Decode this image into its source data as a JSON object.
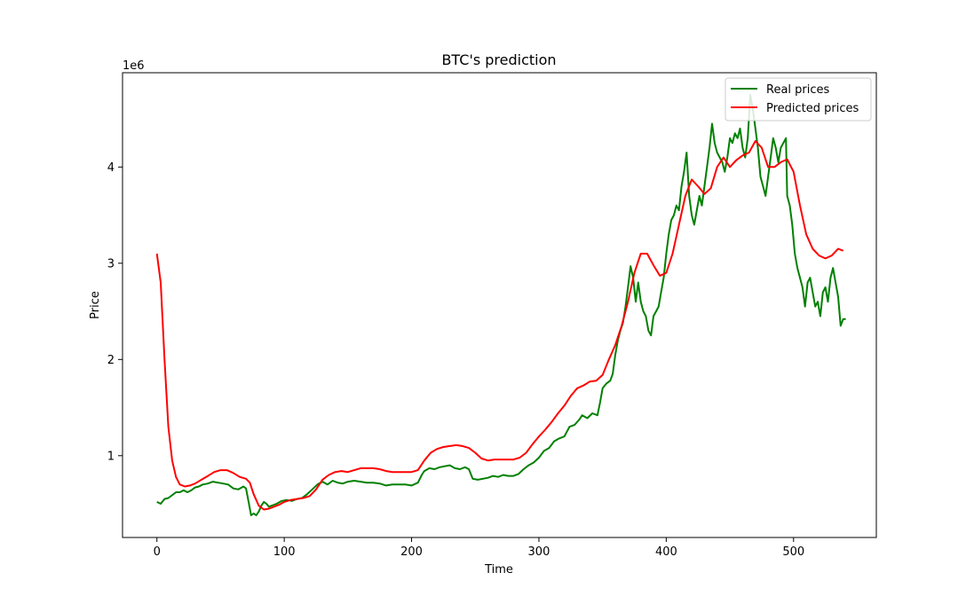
{
  "chart_data": {
    "type": "line",
    "title": "BTC's prediction",
    "xlabel": "Time",
    "ylabel": "Price",
    "offset_text": "1e6",
    "xlim": [
      -27,
      565
    ],
    "ylim": [
      0.15,
      4.98
    ],
    "xticks": [
      0,
      100,
      200,
      300,
      400,
      500
    ],
    "xtick_labels": [
      "0",
      "100",
      "200",
      "300",
      "400",
      "500"
    ],
    "yticks": [
      1,
      2,
      3,
      4
    ],
    "ytick_labels": [
      "1",
      "2",
      "3",
      "4"
    ],
    "grid": false,
    "legend_position": "top-right",
    "series": [
      {
        "name": "Real prices",
        "color": "#008000",
        "points": [
          [
            0,
            0.52
          ],
          [
            3,
            0.5
          ],
          [
            6,
            0.55
          ],
          [
            9,
            0.56
          ],
          [
            12,
            0.59
          ],
          [
            15,
            0.62
          ],
          [
            18,
            0.62
          ],
          [
            21,
            0.64
          ],
          [
            24,
            0.62
          ],
          [
            27,
            0.64
          ],
          [
            30,
            0.67
          ],
          [
            33,
            0.68
          ],
          [
            36,
            0.7
          ],
          [
            40,
            0.71
          ],
          [
            44,
            0.73
          ],
          [
            48,
            0.72
          ],
          [
            52,
            0.71
          ],
          [
            56,
            0.7
          ],
          [
            60,
            0.66
          ],
          [
            64,
            0.65
          ],
          [
            68,
            0.68
          ],
          [
            70,
            0.66
          ],
          [
            72,
            0.52
          ],
          [
            74,
            0.38
          ],
          [
            76,
            0.4
          ],
          [
            78,
            0.38
          ],
          [
            80,
            0.42
          ],
          [
            82,
            0.48
          ],
          [
            84,
            0.52
          ],
          [
            86,
            0.5
          ],
          [
            88,
            0.47
          ],
          [
            90,
            0.48
          ],
          [
            94,
            0.5
          ],
          [
            98,
            0.53
          ],
          [
            102,
            0.54
          ],
          [
            106,
            0.53
          ],
          [
            110,
            0.55
          ],
          [
            114,
            0.56
          ],
          [
            118,
            0.6
          ],
          [
            122,
            0.65
          ],
          [
            126,
            0.7
          ],
          [
            130,
            0.73
          ],
          [
            134,
            0.7
          ],
          [
            138,
            0.74
          ],
          [
            142,
            0.72
          ],
          [
            146,
            0.71
          ],
          [
            150,
            0.73
          ],
          [
            155,
            0.74
          ],
          [
            160,
            0.73
          ],
          [
            165,
            0.72
          ],
          [
            170,
            0.72
          ],
          [
            175,
            0.71
          ],
          [
            180,
            0.69
          ],
          [
            185,
            0.7
          ],
          [
            190,
            0.7
          ],
          [
            195,
            0.7
          ],
          [
            200,
            0.69
          ],
          [
            205,
            0.72
          ],
          [
            208,
            0.8
          ],
          [
            210,
            0.84
          ],
          [
            214,
            0.87
          ],
          [
            218,
            0.86
          ],
          [
            222,
            0.88
          ],
          [
            226,
            0.89
          ],
          [
            230,
            0.9
          ],
          [
            234,
            0.87
          ],
          [
            238,
            0.86
          ],
          [
            242,
            0.88
          ],
          [
            245,
            0.86
          ],
          [
            248,
            0.76
          ],
          [
            252,
            0.75
          ],
          [
            256,
            0.76
          ],
          [
            260,
            0.77
          ],
          [
            264,
            0.79
          ],
          [
            268,
            0.78
          ],
          [
            272,
            0.8
          ],
          [
            276,
            0.79
          ],
          [
            280,
            0.79
          ],
          [
            284,
            0.81
          ],
          [
            288,
            0.86
          ],
          [
            292,
            0.9
          ],
          [
            296,
            0.93
          ],
          [
            300,
            0.98
          ],
          [
            304,
            1.05
          ],
          [
            308,
            1.08
          ],
          [
            312,
            1.15
          ],
          [
            316,
            1.18
          ],
          [
            320,
            1.2
          ],
          [
            324,
            1.3
          ],
          [
            328,
            1.32
          ],
          [
            332,
            1.38
          ],
          [
            334,
            1.42
          ],
          [
            338,
            1.39
          ],
          [
            342,
            1.44
          ],
          [
            346,
            1.42
          ],
          [
            348,
            1.55
          ],
          [
            350,
            1.7
          ],
          [
            353,
            1.75
          ],
          [
            356,
            1.78
          ],
          [
            358,
            1.85
          ],
          [
            360,
            2.05
          ],
          [
            362,
            2.2
          ],
          [
            364,
            2.3
          ],
          [
            366,
            2.38
          ],
          [
            368,
            2.55
          ],
          [
            370,
            2.75
          ],
          [
            372,
            2.97
          ],
          [
            374,
            2.85
          ],
          [
            376,
            2.6
          ],
          [
            378,
            2.8
          ],
          [
            380,
            2.6
          ],
          [
            382,
            2.5
          ],
          [
            384,
            2.45
          ],
          [
            386,
            2.3
          ],
          [
            388,
            2.25
          ],
          [
            390,
            2.45
          ],
          [
            392,
            2.5
          ],
          [
            394,
            2.55
          ],
          [
            396,
            2.7
          ],
          [
            398,
            2.85
          ],
          [
            400,
            3.1
          ],
          [
            402,
            3.3
          ],
          [
            404,
            3.45
          ],
          [
            406,
            3.5
          ],
          [
            408,
            3.6
          ],
          [
            410,
            3.55
          ],
          [
            412,
            3.8
          ],
          [
            414,
            3.95
          ],
          [
            416,
            4.15
          ],
          [
            418,
            3.7
          ],
          [
            420,
            3.5
          ],
          [
            422,
            3.4
          ],
          [
            424,
            3.55
          ],
          [
            426,
            3.7
          ],
          [
            428,
            3.6
          ],
          [
            430,
            3.8
          ],
          [
            432,
            4.0
          ],
          [
            434,
            4.2
          ],
          [
            436,
            4.45
          ],
          [
            438,
            4.25
          ],
          [
            440,
            4.15
          ],
          [
            442,
            4.1
          ],
          [
            444,
            4.05
          ],
          [
            446,
            3.95
          ],
          [
            448,
            4.1
          ],
          [
            450,
            4.3
          ],
          [
            452,
            4.25
          ],
          [
            454,
            4.35
          ],
          [
            456,
            4.3
          ],
          [
            458,
            4.4
          ],
          [
            460,
            4.2
          ],
          [
            462,
            4.1
          ],
          [
            464,
            4.3
          ],
          [
            466,
            4.75
          ],
          [
            468,
            4.6
          ],
          [
            470,
            4.4
          ],
          [
            472,
            4.2
          ],
          [
            474,
            3.9
          ],
          [
            476,
            3.8
          ],
          [
            478,
            3.7
          ],
          [
            480,
            3.9
          ],
          [
            482,
            4.1
          ],
          [
            484,
            4.3
          ],
          [
            486,
            4.2
          ],
          [
            488,
            4.05
          ],
          [
            490,
            4.2
          ],
          [
            492,
            4.25
          ],
          [
            494,
            4.3
          ],
          [
            495,
            3.7
          ],
          [
            497,
            3.6
          ],
          [
            499,
            3.4
          ],
          [
            501,
            3.1
          ],
          [
            503,
            2.95
          ],
          [
            505,
            2.85
          ],
          [
            507,
            2.75
          ],
          [
            509,
            2.55
          ],
          [
            511,
            2.8
          ],
          [
            513,
            2.85
          ],
          [
            515,
            2.7
          ],
          [
            517,
            2.55
          ],
          [
            519,
            2.6
          ],
          [
            521,
            2.45
          ],
          [
            523,
            2.7
          ],
          [
            525,
            2.75
          ],
          [
            527,
            2.6
          ],
          [
            529,
            2.85
          ],
          [
            531,
            2.95
          ],
          [
            533,
            2.8
          ],
          [
            535,
            2.65
          ],
          [
            537,
            2.35
          ],
          [
            539,
            2.42
          ],
          [
            541,
            2.42
          ]
        ]
      },
      {
        "name": "Predicted prices",
        "color": "#ff0000",
        "points": [
          [
            0,
            3.1
          ],
          [
            3,
            2.8
          ],
          [
            6,
            2.0
          ],
          [
            9,
            1.3
          ],
          [
            12,
            0.95
          ],
          [
            15,
            0.78
          ],
          [
            18,
            0.7
          ],
          [
            22,
            0.68
          ],
          [
            26,
            0.69
          ],
          [
            30,
            0.71
          ],
          [
            35,
            0.75
          ],
          [
            40,
            0.79
          ],
          [
            45,
            0.83
          ],
          [
            50,
            0.85
          ],
          [
            55,
            0.85
          ],
          [
            60,
            0.82
          ],
          [
            65,
            0.78
          ],
          [
            70,
            0.76
          ],
          [
            73,
            0.72
          ],
          [
            76,
            0.6
          ],
          [
            80,
            0.48
          ],
          [
            84,
            0.44
          ],
          [
            88,
            0.45
          ],
          [
            92,
            0.47
          ],
          [
            96,
            0.49
          ],
          [
            100,
            0.52
          ],
          [
            105,
            0.54
          ],
          [
            110,
            0.55
          ],
          [
            115,
            0.56
          ],
          [
            120,
            0.58
          ],
          [
            125,
            0.65
          ],
          [
            130,
            0.75
          ],
          [
            135,
            0.8
          ],
          [
            140,
            0.83
          ],
          [
            145,
            0.84
          ],
          [
            150,
            0.83
          ],
          [
            155,
            0.85
          ],
          [
            160,
            0.87
          ],
          [
            165,
            0.87
          ],
          [
            170,
            0.87
          ],
          [
            175,
            0.86
          ],
          [
            180,
            0.84
          ],
          [
            185,
            0.83
          ],
          [
            190,
            0.83
          ],
          [
            195,
            0.83
          ],
          [
            200,
            0.83
          ],
          [
            205,
            0.85
          ],
          [
            210,
            0.95
          ],
          [
            215,
            1.03
          ],
          [
            220,
            1.07
          ],
          [
            225,
            1.09
          ],
          [
            230,
            1.1
          ],
          [
            235,
            1.11
          ],
          [
            240,
            1.1
          ],
          [
            245,
            1.08
          ],
          [
            250,
            1.03
          ],
          [
            255,
            0.97
          ],
          [
            260,
            0.95
          ],
          [
            265,
            0.96
          ],
          [
            270,
            0.96
          ],
          [
            275,
            0.96
          ],
          [
            280,
            0.96
          ],
          [
            285,
            0.98
          ],
          [
            290,
            1.03
          ],
          [
            295,
            1.12
          ],
          [
            300,
            1.2
          ],
          [
            305,
            1.27
          ],
          [
            310,
            1.35
          ],
          [
            315,
            1.44
          ],
          [
            320,
            1.52
          ],
          [
            325,
            1.62
          ],
          [
            330,
            1.7
          ],
          [
            335,
            1.73
          ],
          [
            340,
            1.77
          ],
          [
            345,
            1.78
          ],
          [
            350,
            1.84
          ],
          [
            355,
            2.0
          ],
          [
            360,
            2.15
          ],
          [
            365,
            2.35
          ],
          [
            370,
            2.6
          ],
          [
            375,
            2.9
          ],
          [
            380,
            3.1
          ],
          [
            385,
            3.1
          ],
          [
            390,
            2.98
          ],
          [
            395,
            2.87
          ],
          [
            400,
            2.9
          ],
          [
            405,
            3.1
          ],
          [
            410,
            3.4
          ],
          [
            415,
            3.7
          ],
          [
            420,
            3.87
          ],
          [
            425,
            3.8
          ],
          [
            430,
            3.72
          ],
          [
            435,
            3.78
          ],
          [
            440,
            4.0
          ],
          [
            445,
            4.1
          ],
          [
            450,
            4.0
          ],
          [
            455,
            4.07
          ],
          [
            460,
            4.12
          ],
          [
            465,
            4.15
          ],
          [
            470,
            4.27
          ],
          [
            475,
            4.2
          ],
          [
            480,
            4.0
          ],
          [
            485,
            4.0
          ],
          [
            490,
            4.05
          ],
          [
            495,
            4.08
          ],
          [
            500,
            3.95
          ],
          [
            505,
            3.6
          ],
          [
            510,
            3.3
          ],
          [
            515,
            3.15
          ],
          [
            520,
            3.08
          ],
          [
            525,
            3.05
          ],
          [
            530,
            3.08
          ],
          [
            535,
            3.15
          ],
          [
            539,
            3.13
          ]
        ]
      }
    ]
  }
}
